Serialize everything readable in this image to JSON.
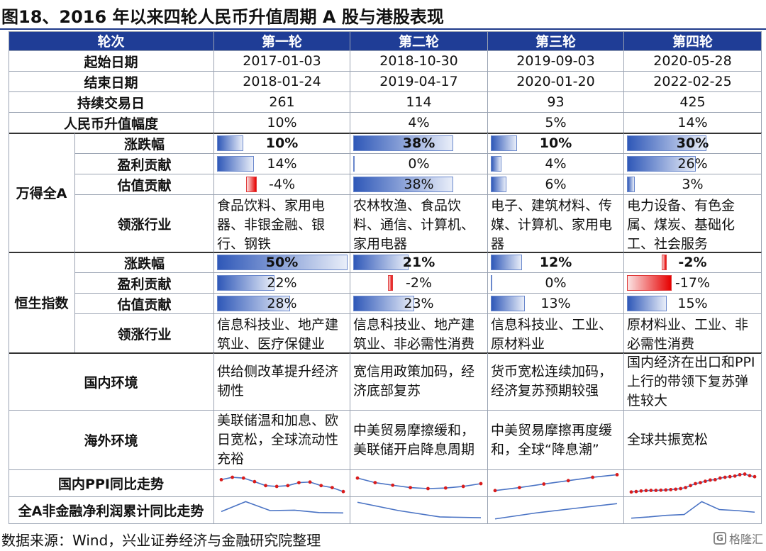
{
  "figure_title": "图18、2016 年以来四轮人民币升值周期 A 股与港股表现",
  "source_note": "数据来源：Wind，兴业证券经济与金融研究院整理",
  "watermark": "格隆汇",
  "colors": {
    "header_bg": "#1f3d96",
    "positive_bar": "#2f58b8",
    "negative_bar": "#e60000",
    "sparkline_line": "#4a73c4",
    "sparkline_dot": "#d91c1c"
  },
  "chart_data": {
    "type": "table",
    "header": {
      "label": "轮次",
      "rounds": [
        "第一轮",
        "第二轮",
        "第三轮",
        "第四轮"
      ]
    },
    "info_rows": [
      {
        "label": "起始日期",
        "values": [
          "2017-01-03",
          "2018-10-30",
          "2019-09-03",
          "2020-05-28"
        ]
      },
      {
        "label": "结束日期",
        "values": [
          "2018-01-24",
          "2019-04-17",
          "2020-01-20",
          "2022-02-25"
        ]
      },
      {
        "label": "持续交易日",
        "values": [
          "261",
          "114",
          "93",
          "425"
        ]
      },
      {
        "label": "人民币升值幅度",
        "values": [
          "10%",
          "4%",
          "5%",
          "14%"
        ]
      }
    ],
    "bar_scale_max": 50,
    "groups": [
      {
        "name": "万得全A",
        "bar_rows": [
          {
            "label": "涨跌幅",
            "bold": true,
            "values": [
              10,
              38,
              10,
              30
            ],
            "display": [
              "10%",
              "38%",
              "10%",
              "30%"
            ]
          },
          {
            "label": "盈利贡献",
            "bold": false,
            "values": [
              14,
              0,
              4,
              26
            ],
            "display": [
              "14%",
              "0%",
              "4%",
              "26%"
            ]
          },
          {
            "label": "估值贡献",
            "bold": false,
            "values": [
              -4,
              38,
              6,
              3
            ],
            "display": [
              "-4%",
              "38%",
              "6%",
              "3%"
            ]
          }
        ],
        "industry_label": "领涨行业",
        "industries": [
          "食品饮料、家用电器、非银金融、银行、钢铁",
          "农林牧渔、食品饮料、通信、计算机、家用电器",
          "电子、建筑材料、传媒、计算机、家用电器",
          "电力设备、有色金属、煤炭、基础化工、社会服务"
        ]
      },
      {
        "name": "恒生指数",
        "bar_rows": [
          {
            "label": "涨跌幅",
            "bold": true,
            "values": [
              50,
              21,
              12,
              -2
            ],
            "display": [
              "50%",
              "21%",
              "12%",
              "-2%"
            ]
          },
          {
            "label": "盈利贡献",
            "bold": false,
            "values": [
              22,
              -2,
              0,
              -17
            ],
            "display": [
              "22%",
              "-2%",
              "0%",
              "-17%"
            ]
          },
          {
            "label": "估值贡献",
            "bold": false,
            "values": [
              28,
              23,
              13,
              15
            ],
            "display": [
              "28%",
              "23%",
              "13%",
              "15%"
            ]
          }
        ],
        "industry_label": "领涨行业",
        "industries": [
          "信息科技业、地产建筑业、医疗保健业",
          "信息科技业、地产建筑业、非必需性消费",
          "信息科技业、工业、原材料业",
          "原材料业、工业、非必需性消费"
        ]
      }
    ],
    "env_rows": [
      {
        "label": "国内环境",
        "values": [
          "供给侧改革提升经济韧性",
          "宽信用政策加码，经济底部复苏",
          "货币宽松连续加码，经济复苏预期较强",
          "国内经济在出口和PPI上行的带领下复苏弹性较大"
        ]
      },
      {
        "label": "海外环境",
        "values": [
          "美联储温和加息、欧日宽松，全球流动性充裕",
          "中美贸易摩擦缓和，美联储开启降息周期",
          "中美贸易摩擦再度缓和，全球“降息潮”",
          "全球共振宽松"
        ]
      }
    ],
    "trend_rows": [
      {
        "label": "国内PPI同比走势",
        "markers": true,
        "series": [
          [
            0.7,
            0.82,
            0.78,
            0.6,
            0.4,
            0.36,
            0.4,
            0.55,
            0.58,
            0.4,
            0.3,
            0.1
          ],
          [
            0.78,
            0.55,
            0.42,
            0.3,
            0.25,
            0.28,
            0.36,
            0.5
          ],
          [
            0.15,
            0.3,
            0.48,
            0.65,
            0.82,
            0.95
          ],
          [
            0.08,
            0.1,
            0.13,
            0.15,
            0.16,
            0.16,
            0.17,
            0.18,
            0.2,
            0.22,
            0.25,
            0.3,
            0.4,
            0.5,
            0.55,
            0.62,
            0.68,
            0.7,
            0.78,
            0.82,
            0.85,
            0.88,
            0.95,
            0.98,
            0.9,
            0.85
          ]
        ]
      },
      {
        "label": "全A非金融净利润累计同比走势",
        "markers": false,
        "series": [
          [
            0.45,
            0.95,
            0.5,
            0.52,
            0.4,
            0.38
          ],
          [
            0.92,
            0.5,
            0.18,
            0.14
          ],
          [
            0.08,
            0.38,
            0.62,
            0.85
          ],
          [
            0.12,
            0.18,
            0.26,
            0.3,
            0.95,
            0.55,
            0.5,
            0.42
          ]
        ]
      }
    ]
  }
}
